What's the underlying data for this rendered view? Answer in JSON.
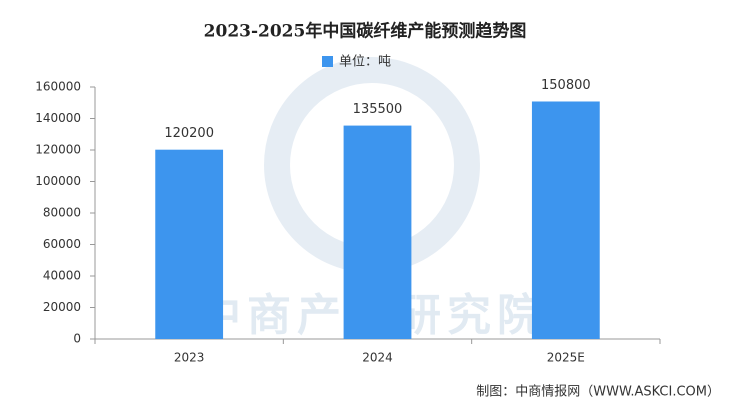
{
  "chart_data": {
    "type": "bar",
    "title": "2023-2025年中国碳纤维产能预测趋势图",
    "categories": [
      "2023",
      "2024",
      "2025E"
    ],
    "series": [
      {
        "name": "单位：吨",
        "color": "#3d95ee",
        "values": [
          120200,
          135500,
          150800
        ]
      }
    ],
    "ylim": [
      0,
      160000
    ],
    "yticks": [
      0,
      20000,
      40000,
      60000,
      80000,
      100000,
      120000,
      140000,
      160000
    ],
    "grid": false,
    "legend": "top",
    "watermark": "中商产业研究院",
    "source": "制图：中商情报网（WWW.ASKCI.COM）"
  }
}
